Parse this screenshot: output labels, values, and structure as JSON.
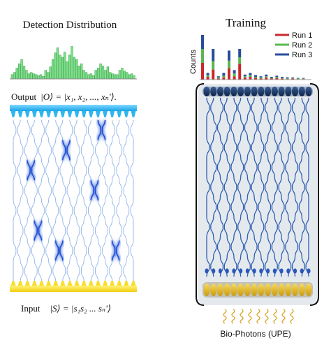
{
  "left": {
    "title": "Detection Distribution",
    "output_label": "Output",
    "output_state": "|O⟩ = |x₁, x₂, ..., xₙ'⟩.",
    "input_label": "Input",
    "input_state": "|S⟩ = |s₁s₂ ... sₙ'⟩",
    "histogram_heights": [
      0.1,
      0.15,
      0.25,
      0.35,
      0.45,
      0.3,
      0.2,
      0.12,
      0.15,
      0.12,
      0.1,
      0.08,
      0.1,
      0.06,
      0.2,
      0.15,
      0.28,
      0.45,
      0.6,
      0.72,
      0.55,
      0.5,
      0.62,
      0.4,
      0.55,
      0.75,
      0.5,
      0.45,
      0.3,
      0.35,
      0.2,
      0.15,
      0.1,
      0.12,
      0.08,
      0.2,
      0.25,
      0.35,
      0.3,
      0.2,
      0.28,
      0.15,
      0.12,
      0.1,
      0.1,
      0.2,
      0.25,
      0.18,
      0.15,
      0.1,
      0.12,
      0.08
    ],
    "colors": {
      "hist": "#7ee08a",
      "hist_line": "#3aa04a",
      "detector": "#2fb6f0",
      "source": "#f7de2a",
      "waveguide": "#8fb3e8",
      "hotspot": "#1f4fd4"
    }
  },
  "right": {
    "title": "Training",
    "counts_label": "Counts",
    "legend": [
      {
        "label": "Run 1",
        "color": "#c8292c"
      },
      {
        "label": "Run 2",
        "color": "#58b850"
      },
      {
        "label": "Run 3",
        "color": "#2a4c9c"
      }
    ],
    "stacked_bars": [
      [
        0.3,
        0.25,
        0.25
      ],
      [
        0.05,
        0.03,
        0.04
      ],
      [
        0.18,
        0.15,
        0.22
      ],
      [
        0.02,
        0.02,
        0.02
      ],
      [
        0.04,
        0.03,
        0.05
      ],
      [
        0.2,
        0.14,
        0.18
      ],
      [
        0.06,
        0.05,
        0.06
      ],
      [
        0.28,
        0.12,
        0.15
      ],
      [
        0.04,
        0.02,
        0.03
      ],
      [
        0.05,
        0.03,
        0.04
      ],
      [
        0.03,
        0.02,
        0.03
      ],
      [
        0.02,
        0.02,
        0.02
      ],
      [
        0.04,
        0.02,
        0.03
      ],
      [
        0.02,
        0.01,
        0.02
      ],
      [
        0.03,
        0.02,
        0.02
      ],
      [
        0.02,
        0.01,
        0.02
      ],
      [
        0.01,
        0.01,
        0.02
      ],
      [
        0.02,
        0.01,
        0.01
      ],
      [
        0.01,
        0.01,
        0.01
      ],
      [
        0.01,
        0.01,
        0.01
      ]
    ],
    "upe_label": "Bio-Photons (UPE)",
    "colors": {
      "panel": "#e6ebef",
      "waveguide": "#2f5fb0",
      "detector": "#13325e",
      "source": "#e7b922",
      "photon": "#d4a018"
    }
  }
}
